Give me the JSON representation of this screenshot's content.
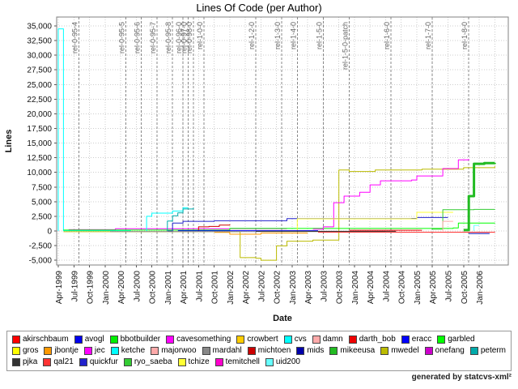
{
  "header": {
    "title": "Lines Of Code (per Author)"
  },
  "footer": {
    "credit": "generated by statcvs-xml²"
  },
  "legend": {
    "items": [
      {
        "label": "akirschbaum",
        "color": "#FF0000"
      },
      {
        "label": "avogl",
        "color": "#0000EE"
      },
      {
        "label": "bbotbuilder",
        "color": "#00EE00"
      },
      {
        "label": "cavesomething",
        "color": "#FF00FF"
      },
      {
        "label": "crowbert",
        "color": "#FFCC00"
      },
      {
        "label": "cvs",
        "color": "#00FFFF"
      },
      {
        "label": "damn",
        "color": "#FFAAAA"
      },
      {
        "label": "darth_bob",
        "color": "#EE0000"
      },
      {
        "label": "eracc",
        "color": "#0000FF"
      },
      {
        "label": "garbled",
        "color": "#00FF00"
      },
      {
        "label": "gros",
        "color": "#FFFF00"
      },
      {
        "label": "jbontje",
        "color": "#FF9900"
      },
      {
        "label": "jec",
        "color": "#FF00FF"
      },
      {
        "label": "ketche",
        "color": "#00FFFF"
      },
      {
        "label": "majorwoo",
        "color": "#FFAAAA"
      },
      {
        "label": "mardahl",
        "color": "#888888"
      },
      {
        "label": "michtoen",
        "color": "#CC0000"
      },
      {
        "label": "mids",
        "color": "#0000AA"
      },
      {
        "label": "mikeeusa",
        "color": "#22BB22"
      },
      {
        "label": "mwedel",
        "color": "#BBBB00"
      },
      {
        "label": "onefang",
        "color": "#CC00CC"
      },
      {
        "label": "peterm",
        "color": "#00AAAA"
      },
      {
        "label": "pjka",
        "color": "#333333"
      },
      {
        "label": "qal21",
        "color": "#FF3333"
      },
      {
        "label": "quickfur",
        "color": "#2222CC"
      },
      {
        "label": "ryo_saeba",
        "color": "#33CC33"
      },
      {
        "label": "tchize",
        "color": "#FFFF33"
      },
      {
        "label": "temitchell",
        "color": "#FF00CC"
      },
      {
        "label": "uid200",
        "color": "#66FFFF"
      }
    ]
  },
  "chart_data": {
    "type": "line",
    "title": "Lines Of Code (per Author)",
    "xlabel": "Date",
    "ylabel": "Lines",
    "ylim": [
      -5000,
      35000
    ],
    "y_tick_step": 2500,
    "y_tick_labels": [
      "-5,000",
      "-2,500",
      "0",
      "2,500",
      "5,000",
      "7,500",
      "10,000",
      "12,500",
      "15,000",
      "17,500",
      "20,000",
      "22,500",
      "25,000",
      "27,500",
      "30,000",
      "32,500",
      "35,000"
    ],
    "x_ticks": [
      "Apr-1999",
      "Jul-1999",
      "Oct-1999",
      "Jan-2000",
      "Apr-2000",
      "Jul-2000",
      "Oct-2000",
      "Jan-2001",
      "Apr-2001",
      "Jul-2001",
      "Oct-2001",
      "Jan-2002",
      "Apr-2002",
      "Jul-2002",
      "Oct-2002",
      "Jan-2003",
      "Apr-2003",
      "Jul-2003",
      "Oct-2003",
      "Jan-2004",
      "Apr-2004",
      "Jul-2004",
      "Oct-2004",
      "Jan-2005",
      "Apr-2005",
      "Jul-2005",
      "Oct-2005",
      "Jan-2006"
    ],
    "x_range_months": [
      "1999-04",
      "2006-04"
    ],
    "grid": true,
    "legend_position": "bottom",
    "releases": [
      {
        "label": "rel-0-95-4",
        "date": "1999-08"
      },
      {
        "label": "rel-0-95-5",
        "date": "2000-05"
      },
      {
        "label": "rel-0-95-6",
        "date": "2000-08"
      },
      {
        "label": "rel-0-95-7",
        "date": "2000-11"
      },
      {
        "label": "rel-0-95-8",
        "date": "2001-02"
      },
      {
        "label": "rel-0-96-0",
        "date": "2001-04"
      },
      {
        "label": "rel-0-97-0",
        "date": "2001-05"
      },
      {
        "label": "rel-0-98-0",
        "date": "2001-06"
      },
      {
        "label": "rel-1-0-0",
        "date": "2001-08"
      },
      {
        "label": "rel-1-2-0",
        "date": "2002-06"
      },
      {
        "label": "rel-1-3-0",
        "date": "2002-11"
      },
      {
        "label": "rel-1-4-0",
        "date": "2003-02"
      },
      {
        "label": "rel-1-5-0",
        "date": "2003-07"
      },
      {
        "label": "rel-1-5-0-patch",
        "date": "2003-12"
      },
      {
        "label": "rel-1-6-0",
        "date": "2004-08"
      },
      {
        "label": "rel-1-7-0",
        "date": "2005-04"
      },
      {
        "label": "rel-1-8-0",
        "date": "2005-11"
      }
    ],
    "series": [
      {
        "name": "cvs",
        "points": [
          [
            "1999-04",
            0
          ],
          [
            "1999-04",
            34500
          ],
          [
            "1999-05",
            34500
          ],
          [
            "1999-05",
            60
          ],
          [
            "2000-06",
            60
          ]
        ]
      },
      {
        "name": "cavesomething",
        "points": [
          [
            "1999-06",
            220
          ],
          [
            "2000-03",
            220
          ],
          [
            "2000-03",
            380
          ],
          [
            "2002-12",
            380
          ]
        ]
      },
      {
        "name": "mwedel",
        "points": [
          [
            "1999-05",
            -120
          ],
          [
            "2002-03",
            -120
          ],
          [
            "2002-03",
            -4550
          ],
          [
            "2002-06",
            -4650
          ],
          [
            "2002-07",
            -5000
          ],
          [
            "2002-10",
            -2550
          ],
          [
            "2002-12",
            -1750
          ],
          [
            "2003-05",
            -1550
          ],
          [
            "2003-10",
            -1550
          ],
          [
            "2003-10",
            10400
          ],
          [
            "2003-12",
            10150
          ],
          [
            "2004-05",
            10400
          ],
          [
            "2005-02",
            10550
          ],
          [
            "2005-10",
            10800
          ],
          [
            "2006-04",
            11050
          ]
        ]
      },
      {
        "name": "garbled",
        "points": [
          [
            "1999-05",
            150
          ],
          [
            "2001-12",
            150
          ],
          [
            "2002-01",
            430
          ],
          [
            "2005-08",
            520
          ],
          [
            "2005-09",
            1350
          ],
          [
            "2006-04",
            1400
          ]
        ]
      },
      {
        "name": "ketche",
        "points": [
          [
            "2000-09",
            0
          ],
          [
            "2000-09",
            2500
          ],
          [
            "2000-10",
            3050
          ],
          [
            "2001-02",
            3050
          ],
          [
            "2001-02",
            3400
          ],
          [
            "2001-04",
            3950
          ],
          [
            "2001-05",
            3950
          ]
        ]
      },
      {
        "name": "peterm",
        "points": [
          [
            "2001-01",
            0
          ],
          [
            "2001-01",
            1700
          ],
          [
            "2001-02",
            2600
          ],
          [
            "2001-03",
            3100
          ],
          [
            "2001-04",
            3750
          ],
          [
            "2001-06",
            3950
          ]
        ]
      },
      {
        "name": "quickfur",
        "points": [
          [
            "2001-01",
            0
          ],
          [
            "2001-02",
            1350
          ],
          [
            "2001-04",
            1650
          ],
          [
            "2001-10",
            1750
          ],
          [
            "2002-12",
            2100
          ],
          [
            "2004-12",
            2150
          ],
          [
            "2005-01",
            2300
          ],
          [
            "2005-07",
            2300
          ]
        ]
      },
      {
        "name": "michtoen",
        "points": [
          [
            "2001-07",
            0
          ],
          [
            "2001-07",
            700
          ],
          [
            "2001-09",
            780
          ],
          [
            "2001-11",
            1000
          ],
          [
            "2002-01",
            1120
          ]
        ]
      },
      {
        "name": "jbontje",
        "points": [
          [
            "2001-10",
            -230
          ],
          [
            "2002-01",
            -230
          ],
          [
            "2002-01",
            -560
          ],
          [
            "2002-07",
            -360
          ],
          [
            "2003-04",
            -360
          ]
        ]
      },
      {
        "name": "jec",
        "points": [
          [
            "2003-05",
            320
          ],
          [
            "2003-07",
            700
          ],
          [
            "2003-09",
            1450
          ],
          [
            "2003-09",
            4830
          ],
          [
            "2003-11",
            5950
          ],
          [
            "2004-02",
            6600
          ],
          [
            "2004-04",
            7870
          ],
          [
            "2004-06",
            8560
          ],
          [
            "2004-12",
            8700
          ],
          [
            "2005-01",
            9400
          ],
          [
            "2005-06",
            10650
          ],
          [
            "2005-09",
            12150
          ],
          [
            "2005-11",
            12280
          ]
        ]
      },
      {
        "name": "tchize",
        "points": [
          [
            "2003-02",
            0
          ],
          [
            "2003-02",
            2080
          ],
          [
            "2004-12",
            2080
          ],
          [
            "2005-01",
            3180
          ],
          [
            "2005-08",
            3180
          ]
        ]
      },
      {
        "name": "ryo_saeba",
        "points": [
          [
            "2005-04",
            300
          ],
          [
            "2005-06",
            300
          ],
          [
            "2005-06",
            3620
          ],
          [
            "2005-12",
            3680
          ],
          [
            "2006-04",
            3740
          ]
        ]
      },
      {
        "name": "mikeeusa",
        "width": 3,
        "points": [
          [
            "2005-10",
            150
          ],
          [
            "2005-11",
            2050
          ],
          [
            "2005-11",
            5950
          ],
          [
            "2005-12",
            6250
          ],
          [
            "2005-12",
            11470
          ],
          [
            "2006-02",
            11600
          ],
          [
            "2006-04",
            11640
          ]
        ]
      },
      {
        "name": "mardahl",
        "points": [
          [
            "2000-02",
            -90
          ],
          [
            "2004-07",
            -90
          ]
        ]
      },
      {
        "name": "qal21",
        "points": [
          [
            "2003-06",
            -210
          ],
          [
            "2005-11",
            -210
          ],
          [
            "2006-04",
            -280
          ]
        ]
      },
      {
        "name": "mids",
        "points": [
          [
            "2005-11",
            -430
          ],
          [
            "2006-03",
            -430
          ]
        ]
      },
      {
        "name": "majorwoo",
        "points": [
          [
            "2005-06",
            0
          ],
          [
            "2005-06",
            1650
          ],
          [
            "2005-08",
            1650
          ]
        ]
      },
      {
        "name": "uid200",
        "points": [
          [
            "2005-12",
            0
          ],
          [
            "2005-12",
            950
          ],
          [
            "2006-01",
            950
          ]
        ]
      },
      {
        "name": "avogl",
        "points": [
          [
            "2001-03",
            60
          ],
          [
            "2003-06",
            60
          ]
        ]
      },
      {
        "name": "pjka",
        "points": [
          [
            "2002-06",
            -60
          ],
          [
            "2004-09",
            -60
          ]
        ]
      },
      {
        "name": "darth_bob",
        "points": [
          [
            "2003-12",
            120
          ],
          [
            "2005-02",
            120
          ]
        ]
      }
    ]
  }
}
